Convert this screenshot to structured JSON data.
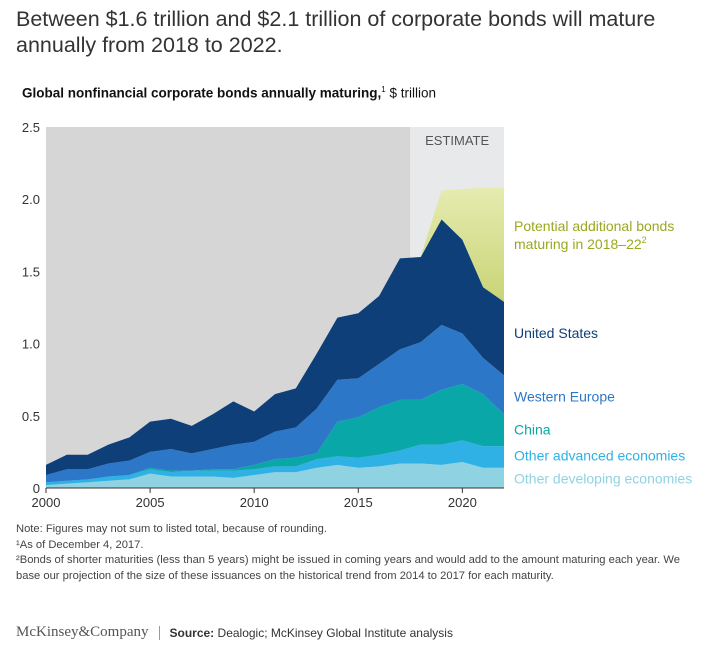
{
  "headline": "Between $1.6 trillion and $2.1 trillion of corporate bonds will mature annually from 2018 to 2022.",
  "subtitle": {
    "bold": "Global nonfinancial corporate bonds annually maturing,",
    "sup": "1",
    "unit": " $ trillion"
  },
  "notes": {
    "note": "Note: Figures may not sum to listed total, because of rounding.",
    "footnote1": "¹As of December 4, 2017.",
    "footnote2": "²Bonds of shorter maturities (less than 5 years) might be issued in coming years and would add to the amount maturing each year. We base our projection of the size of these issuances on the historical trend from 2014 to 2017 for each maturity."
  },
  "footer": {
    "logo": "McKinsey&Company",
    "source_label": "Source:",
    "source_text": " Dealogic; McKinsey Global Institute analysis"
  },
  "colors": {
    "history_bg": "#d6d6d6",
    "estimate_bg": "#e8e9ea",
    "other_developing": "#8fd3e3",
    "other_advanced": "#2fb1e6",
    "china": "#0aa7a8",
    "western_europe": "#2d77c8",
    "united_states": "#0f3f78",
    "potential": "#a8b92a"
  },
  "chart_data": {
    "type": "area",
    "stacked": true,
    "title": "Global nonfinancial corporate bonds annually maturing, $ trillion",
    "xlabel": "",
    "ylabel": "",
    "xlim": [
      2000,
      2022
    ],
    "ylim": [
      0,
      2.5
    ],
    "y_ticks": [
      "0",
      "0.5",
      "1.0",
      "1.5",
      "2.0",
      "2.5"
    ],
    "x_ticks": [
      "2000",
      "2005",
      "2010",
      "2015",
      "2020"
    ],
    "x_tick_values": [
      2000,
      2005,
      2010,
      2015,
      2020
    ],
    "y_tick_values": [
      0,
      0.5,
      1.0,
      1.5,
      2.0,
      2.5
    ],
    "estimate_region": {
      "label": "ESTIMATE",
      "start": 2017.5,
      "end": 2022
    },
    "x": [
      2000,
      2001,
      2002,
      2003,
      2004,
      2005,
      2006,
      2007,
      2008,
      2009,
      2010,
      2011,
      2012,
      2013,
      2014,
      2015,
      2016,
      2017,
      2018,
      2019,
      2020,
      2021,
      2022
    ],
    "series": [
      {
        "name": "Other developing economies",
        "color_key": "other_developing",
        "values": [
          0.02,
          0.03,
          0.04,
          0.05,
          0.06,
          0.1,
          0.08,
          0.08,
          0.08,
          0.07,
          0.09,
          0.11,
          0.11,
          0.14,
          0.16,
          0.14,
          0.15,
          0.17,
          0.17,
          0.16,
          0.18,
          0.14,
          0.14
        ]
      },
      {
        "name": "Other advanced economies",
        "color_key": "other_advanced",
        "values": [
          0.02,
          0.02,
          0.02,
          0.03,
          0.03,
          0.03,
          0.03,
          0.04,
          0.04,
          0.05,
          0.04,
          0.04,
          0.04,
          0.06,
          0.06,
          0.07,
          0.08,
          0.09,
          0.13,
          0.14,
          0.15,
          0.15,
          0.15
        ]
      },
      {
        "name": "China",
        "color_key": "china",
        "values": [
          0.0,
          0.0,
          0.0,
          0.0,
          0.0,
          0.01,
          0.01,
          0.0,
          0.01,
          0.01,
          0.03,
          0.05,
          0.06,
          0.04,
          0.24,
          0.28,
          0.33,
          0.35,
          0.31,
          0.38,
          0.39,
          0.36,
          0.22
        ]
      },
      {
        "name": "Western Europe",
        "color_key": "western_europe",
        "values": [
          0.05,
          0.08,
          0.07,
          0.09,
          0.1,
          0.11,
          0.15,
          0.12,
          0.14,
          0.17,
          0.16,
          0.19,
          0.21,
          0.31,
          0.29,
          0.27,
          0.3,
          0.35,
          0.4,
          0.45,
          0.35,
          0.25,
          0.27
        ]
      },
      {
        "name": "United States",
        "color_key": "united_states",
        "values": [
          0.07,
          0.1,
          0.1,
          0.13,
          0.16,
          0.21,
          0.21,
          0.19,
          0.24,
          0.3,
          0.21,
          0.26,
          0.27,
          0.38,
          0.43,
          0.45,
          0.47,
          0.63,
          0.59,
          0.73,
          0.65,
          0.49,
          0.51
        ]
      },
      {
        "name": "Potential additional bonds maturing in 2018–22",
        "name_sup": "2",
        "color_key": "potential",
        "values": [
          0,
          0,
          0,
          0,
          0,
          0,
          0,
          0,
          0,
          0,
          0,
          0,
          0,
          0,
          0,
          0,
          0,
          0,
          0,
          0.2,
          0.35,
          0.69,
          0.79
        ]
      }
    ]
  }
}
